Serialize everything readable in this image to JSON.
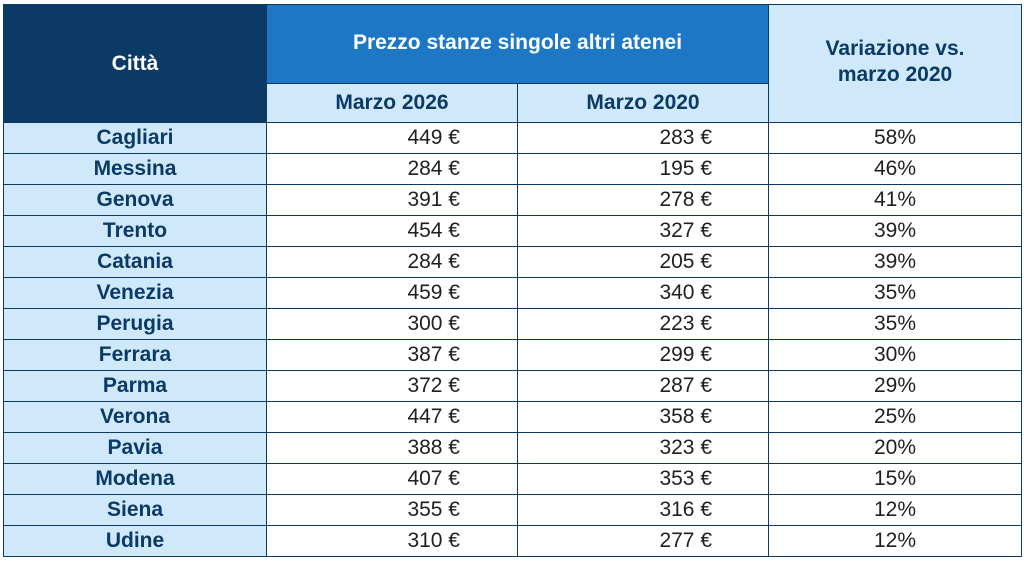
{
  "header": {
    "city": "Città",
    "group": "Prezzo stanze singole altri atenei",
    "col_2026": "Marzo 2026",
    "col_2020": "Marzo 2020",
    "variation": "Variazione vs. marzo 2020"
  },
  "table": {
    "rows": [
      [
        "Cagliari",
        "449 €",
        "283 €",
        "58%"
      ],
      [
        "Messina",
        "284 €",
        "195 €",
        "46%"
      ],
      [
        "Genova",
        "391 €",
        "278 €",
        "41%"
      ],
      [
        "Trento",
        "454 €",
        "327 €",
        "39%"
      ],
      [
        "Catania",
        "284 €",
        "205 €",
        "39%"
      ],
      [
        "Venezia",
        "459 €",
        "340 €",
        "35%"
      ],
      [
        "Perugia",
        "300 €",
        "223 €",
        "35%"
      ],
      [
        "Ferrara",
        "387 €",
        "299 €",
        "30%"
      ],
      [
        "Parma",
        "372 €",
        "287 €",
        "29%"
      ],
      [
        "Verona",
        "447 €",
        "358 €",
        "25%"
      ],
      [
        "Pavia",
        "388 €",
        "323 €",
        "20%"
      ],
      [
        "Modena",
        "407 €",
        "353 €",
        "15%"
      ],
      [
        "Siena",
        "355 €",
        "316 €",
        "12%"
      ],
      [
        "Udine",
        "310 €",
        "277 €",
        "12%"
      ]
    ]
  }
}
